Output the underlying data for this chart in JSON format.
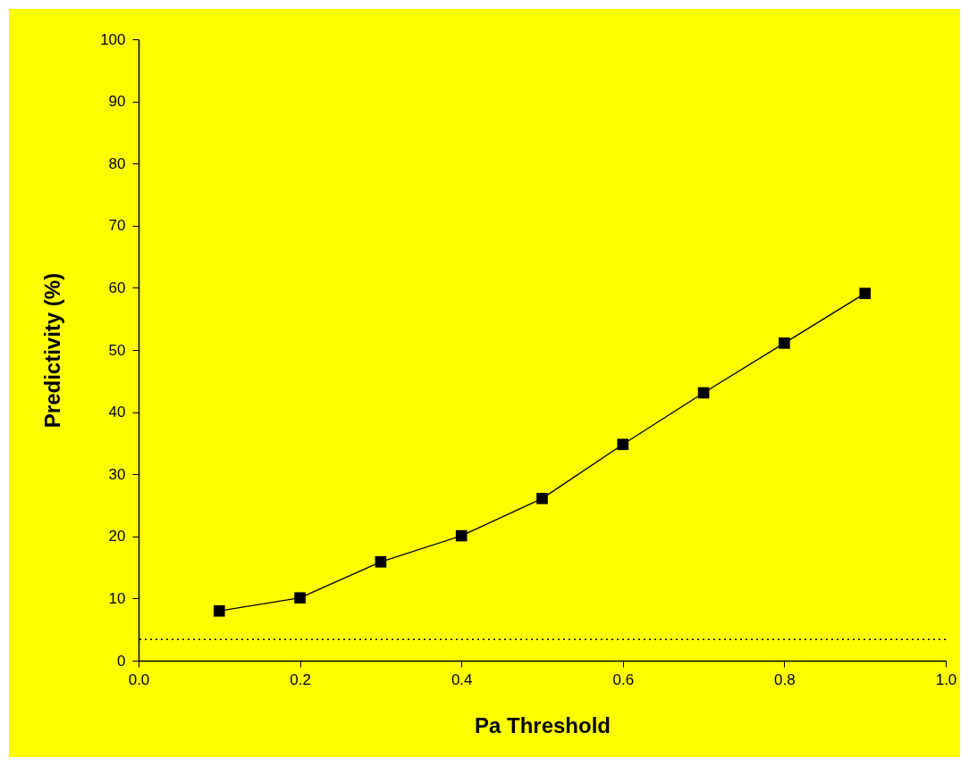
{
  "chart_data": {
    "type": "line",
    "xlabel": "Pa Threshold",
    "ylabel": "Predictivity (%)",
    "x": [
      0.1,
      0.2,
      0.3,
      0.4,
      0.5,
      0.6,
      0.7,
      0.8,
      0.9
    ],
    "series": [
      {
        "color": "#000000",
        "values": [
          8.0,
          10.1,
          15.9,
          20.1,
          26.1,
          34.8,
          43.1,
          51.1,
          59.1
        ]
      }
    ],
    "xlim": [
      0,
      1
    ],
    "xticks": [
      {
        "value": 0,
        "label": "0.0"
      },
      0.2,
      0.4,
      0.6,
      0.8,
      {
        "value": 1,
        "label": "1.0"
      }
    ],
    "ylim": [
      0,
      100
    ],
    "yticks": [
      0,
      10,
      20,
      30,
      40,
      50,
      60,
      70,
      80,
      90,
      100
    ],
    "ref_lines": [
      {
        "axis": "y",
        "value": 3.4,
        "color": "#000000",
        "line_style": "dotted"
      }
    ],
    "grid": false,
    "marker": "square",
    "line_style": "solid"
  }
}
